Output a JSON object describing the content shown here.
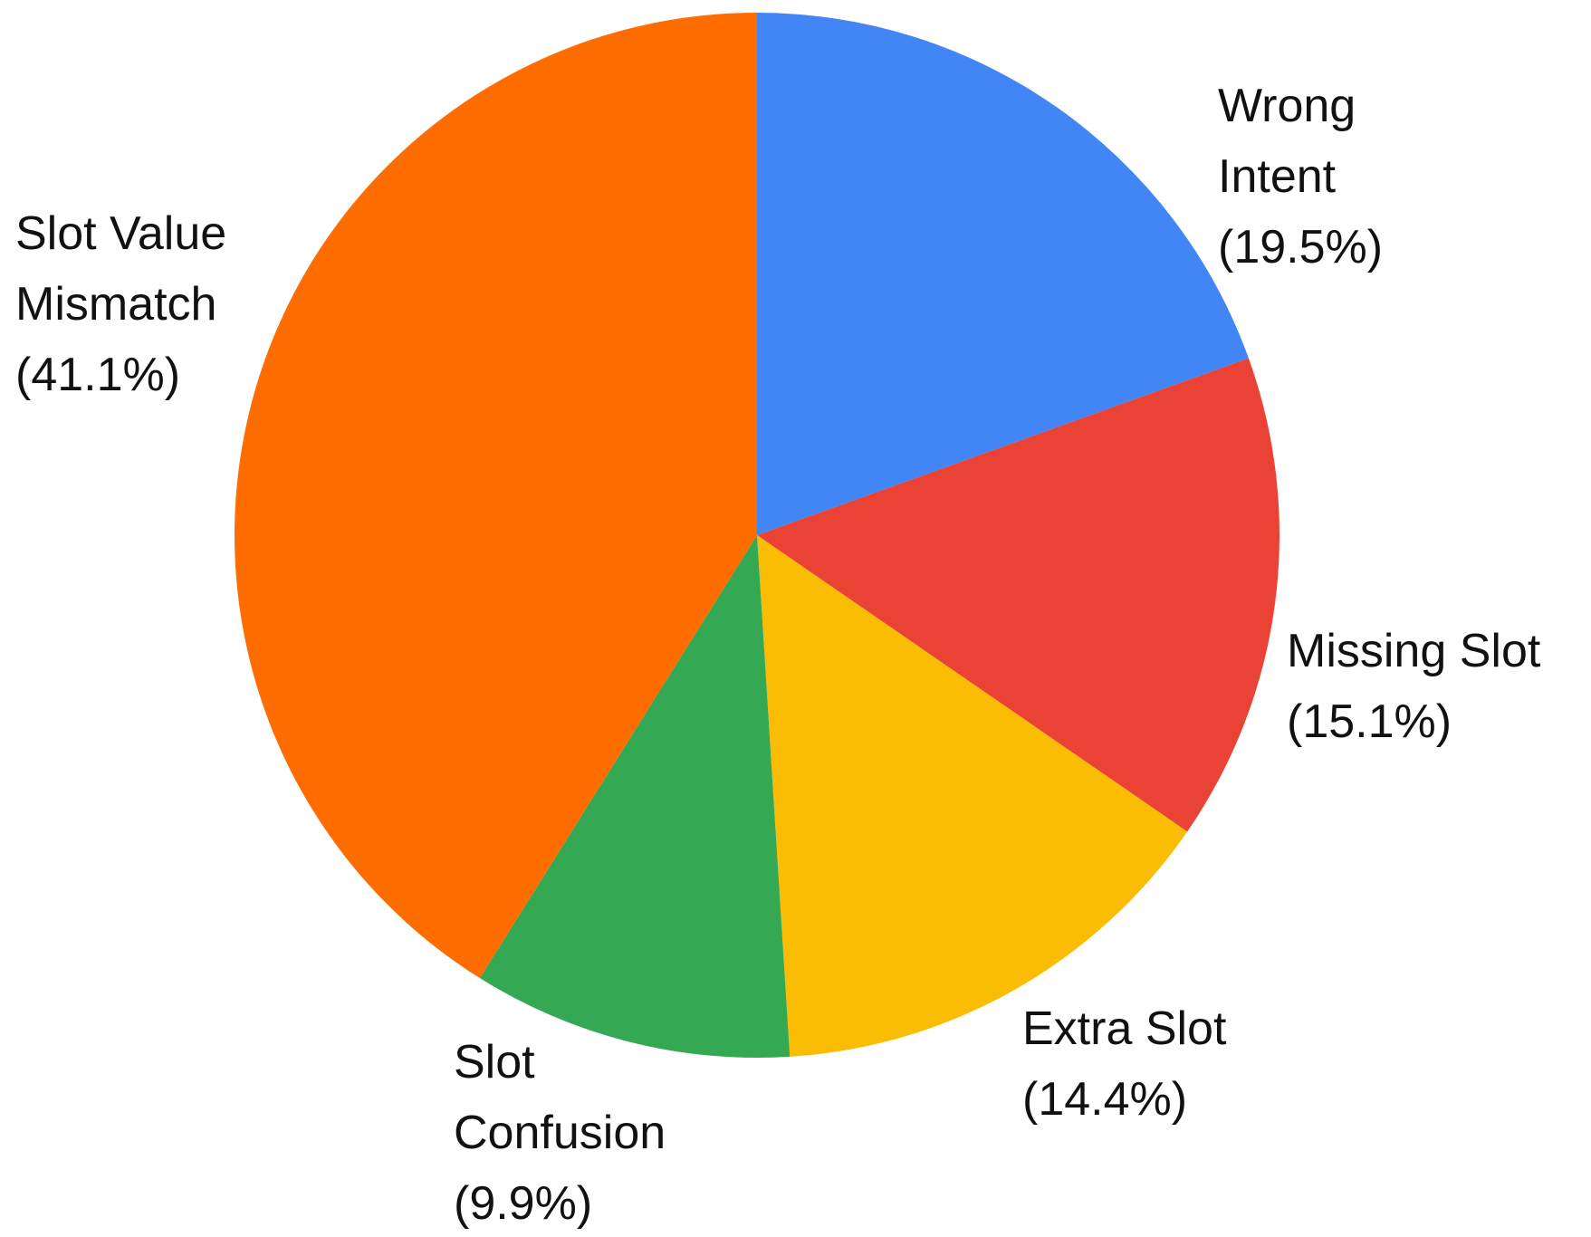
{
  "chart_data": {
    "type": "pie",
    "categories": [
      "Wrong Intent",
      "Missing Slot",
      "Extra Slot",
      "Slot Confusion",
      "Slot Value Mismatch"
    ],
    "values": [
      19.5,
      15.1,
      14.4,
      9.9,
      41.1
    ],
    "value_labels": [
      "(19.5%)",
      "(15.1%)",
      "(14.4%)",
      "(9.9%)",
      "(41.1%)"
    ],
    "colors": [
      "#4285F4",
      "#EA4335",
      "#FBBC04",
      "#34A853",
      "#FF6D01"
    ]
  }
}
